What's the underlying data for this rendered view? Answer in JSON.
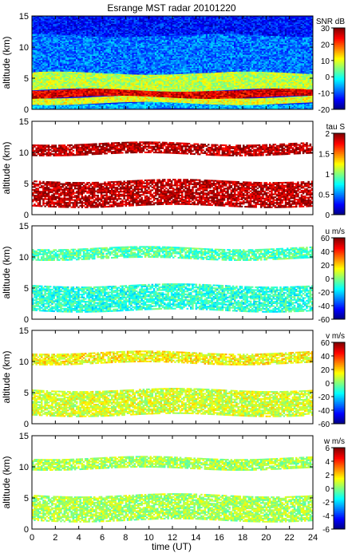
{
  "chart_data": {
    "type": "heatmap",
    "title": "Esrange MST radar 20101220",
    "xlabel": "time (UT)",
    "xlim": [
      0,
      24
    ],
    "xticks": [
      0,
      2,
      4,
      6,
      8,
      10,
      12,
      14,
      16,
      18,
      20,
      22,
      24
    ],
    "colormap": "jet",
    "panels": [
      {
        "id": "snr",
        "ylabel": "altitude (km)",
        "ylim": [
          0,
          15
        ],
        "yticks": [
          0,
          5,
          10,
          15
        ],
        "colorbar_label": "SNR dB",
        "clim": [
          -20,
          30
        ],
        "cticks": [
          -20,
          -10,
          0,
          10,
          20,
          30
        ],
        "coverage": "full",
        "layers": [
          {
            "alt_range": [
              0,
              1.0
            ],
            "approx_value": -5
          },
          {
            "alt_range": [
              1.0,
              2.0
            ],
            "approx_value": 10
          },
          {
            "alt_range": [
              2.0,
              3.2
            ],
            "approx_value": 25
          },
          {
            "alt_range": [
              3.2,
              6.0
            ],
            "approx_value": 8
          },
          {
            "alt_range": [
              6.0,
              12.0
            ],
            "approx_value": -8
          },
          {
            "alt_range": [
              12.0,
              15.0
            ],
            "approx_value": -13
          }
        ]
      },
      {
        "id": "tau",
        "ylabel": "altitude (km)",
        "ylim": [
          0,
          15
        ],
        "yticks": [
          0,
          5,
          10,
          15
        ],
        "colorbar_label": "tau S",
        "clim": [
          0,
          2
        ],
        "cticks": [
          0,
          0.5,
          1,
          1.5,
          2
        ],
        "coverage": "sparse",
        "layers": [
          {
            "alt_range": [
              1.5,
              5.5
            ],
            "approx_value": 1.9
          },
          {
            "alt_range": [
              9.8,
              11.5
            ],
            "approx_value": 1.9
          }
        ]
      },
      {
        "id": "u",
        "ylabel": "altitude (km)",
        "ylim": [
          0,
          15
        ],
        "yticks": [
          0,
          5,
          10,
          15
        ],
        "colorbar_label": "u m/s",
        "clim": [
          -60,
          60
        ],
        "cticks": [
          -60,
          -40,
          -20,
          0,
          20,
          40,
          60
        ],
        "coverage": "sparse",
        "layers": [
          {
            "alt_range": [
              1.5,
              5.5
            ],
            "approx_value": -10
          },
          {
            "alt_range": [
              9.8,
              11.5
            ],
            "approx_value": -5
          }
        ]
      },
      {
        "id": "v",
        "ylabel": "altitude (km)",
        "ylim": [
          0,
          15
        ],
        "yticks": [
          0,
          5,
          10,
          15
        ],
        "colorbar_label": "v m/s",
        "clim": [
          -60,
          60
        ],
        "cticks": [
          -60,
          -40,
          -20,
          0,
          20,
          40,
          60
        ],
        "coverage": "sparse",
        "layers": [
          {
            "alt_range": [
              1.5,
              5.5
            ],
            "approx_value": 10
          },
          {
            "alt_range": [
              9.8,
              11.5
            ],
            "approx_value": 15
          }
        ]
      },
      {
        "id": "w",
        "ylabel": "altitude (km)",
        "ylim": [
          0,
          15
        ],
        "yticks": [
          0,
          5,
          10,
          15
        ],
        "colorbar_label": "w m/s",
        "clim": [
          -6,
          6
        ],
        "cticks": [
          -6,
          -4,
          -2,
          0,
          2,
          4,
          6
        ],
        "coverage": "sparse",
        "layers": [
          {
            "alt_range": [
              1.5,
              5.5
            ],
            "approx_value": 0.5
          },
          {
            "alt_range": [
              9.8,
              11.5
            ],
            "approx_value": 0.5
          }
        ]
      }
    ]
  }
}
